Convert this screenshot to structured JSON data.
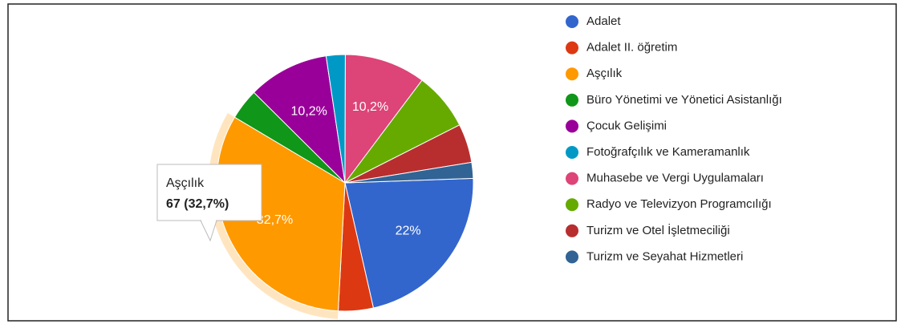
{
  "chart_data": {
    "type": "pie",
    "categories": [
      "Adalet",
      "Adalet II. öğretim",
      "Aşçılık",
      "Büro Yönetimi ve Yönetici Asistanlığı",
      "Çocuk Gelişimi",
      "Fotoğrafçılık ve Kameramanlık",
      "Muhasebe ve Vergi Uygulamaları",
      "Radyo ve Televizyon Programcılığı",
      "Turizm ve Otel İşletmeciliği",
      "Turizm ve Seyahat Hizmetleri"
    ],
    "values": [
      22,
      4.4,
      32.7,
      3.9,
      10.2,
      2.4,
      10.2,
      7.3,
      4.9,
      2.0
    ],
    "value_labels": [
      "22%",
      null,
      "32,7%",
      null,
      "10,2%",
      null,
      "10,2%",
      null,
      null,
      null
    ],
    "colors": [
      "#3366cc",
      "#dc3912",
      "#ff9900",
      "#109618",
      "#990099",
      "#0099c6",
      "#dd4477",
      "#66aa00",
      "#b82e2e",
      "#316395"
    ],
    "legend": "right",
    "tooltip": {
      "title": "Aşçılık",
      "text": "67 (32,7%)"
    }
  }
}
